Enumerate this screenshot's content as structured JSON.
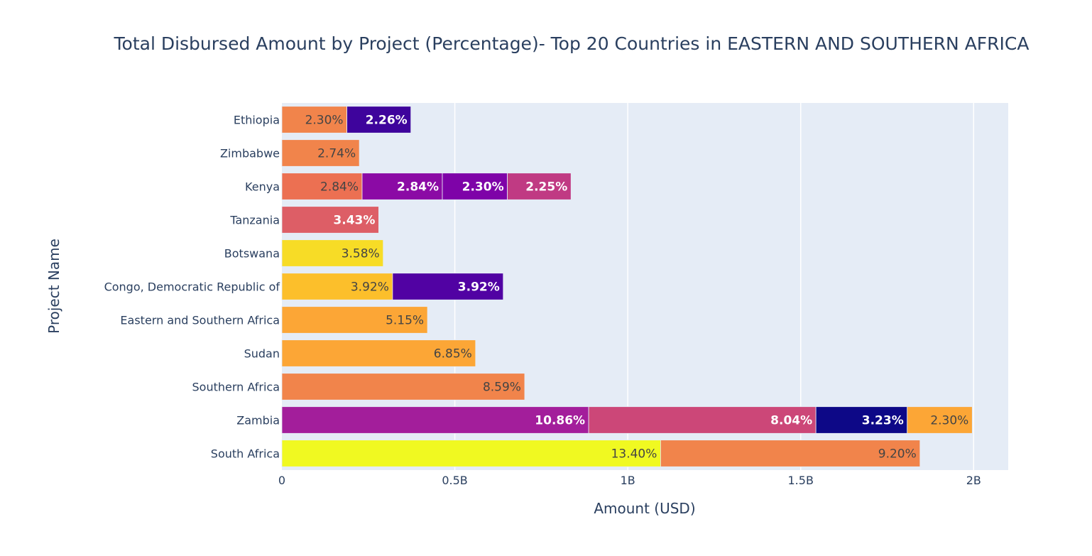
{
  "chart_data": {
    "type": "bar",
    "orientation": "horizontal",
    "barmode": "stack",
    "title": "Total Disbursed Amount by Project (Percentage)- Top 20 Countries in EASTERN AND SOUTHERN AFRICA",
    "xlabel": "Amount (USD)",
    "ylabel": "Project Name",
    "xlim": [
      0,
      2100000000
    ],
    "x_ticks": [
      {
        "value": 0,
        "label": "0"
      },
      {
        "value": 500000000,
        "label": "0.5B"
      },
      {
        "value": 1000000000,
        "label": "1B"
      },
      {
        "value": 1500000000,
        "label": "1.5B"
      },
      {
        "value": 2000000000,
        "label": "2B"
      }
    ],
    "grid": true,
    "categories": [
      "South Africa",
      "Zambia",
      "Southern Africa",
      "Sudan",
      "Eastern and Southern Africa",
      "Congo, Democratic Republic of",
      "Botswana",
      "Tanzania",
      "Kenya",
      "Zimbabwe",
      "Ethiopia"
    ],
    "rows": [
      {
        "category": "South Africa",
        "segments": [
          {
            "value": 1095000000,
            "label": "13.40%",
            "color": "#f0f921"
          },
          {
            "value": 750000000,
            "label": "9.20%",
            "color": "#f1844b"
          }
        ]
      },
      {
        "category": "Zambia",
        "segments": [
          {
            "value": 887000000,
            "label": "10.86%",
            "color": "#a31e9b"
          },
          {
            "value": 657000000,
            "label": "8.04%",
            "color": "#cc4778"
          },
          {
            "value": 264000000,
            "label": "3.23%",
            "color": "#0d0887"
          },
          {
            "value": 188000000,
            "label": "2.30%",
            "color": "#fca636"
          }
        ]
      },
      {
        "category": "Southern Africa",
        "segments": [
          {
            "value": 702000000,
            "label": "8.59%",
            "color": "#f1844b"
          }
        ]
      },
      {
        "category": "Sudan",
        "segments": [
          {
            "value": 560000000,
            "label": "6.85%",
            "color": "#fca636"
          }
        ]
      },
      {
        "category": "Eastern and Southern Africa",
        "segments": [
          {
            "value": 421000000,
            "label": "5.15%",
            "color": "#fca636"
          }
        ]
      },
      {
        "category": "Congo, Democratic Republic of",
        "segments": [
          {
            "value": 320000000,
            "label": "3.92%",
            "color": "#fcbf2b"
          },
          {
            "value": 320000000,
            "label": "3.92%",
            "color": "#5102a3"
          }
        ]
      },
      {
        "category": "Botswana",
        "segments": [
          {
            "value": 293000000,
            "label": "3.58%",
            "color": "#f7dc26"
          }
        ]
      },
      {
        "category": "Tanzania",
        "segments": [
          {
            "value": 280000000,
            "label": "3.43%",
            "color": "#dd5e66"
          }
        ]
      },
      {
        "category": "Kenya",
        "segments": [
          {
            "value": 232000000,
            "label": "2.84%",
            "color": "#ec7052"
          },
          {
            "value": 232000000,
            "label": "2.84%",
            "color": "#8b0aa5"
          },
          {
            "value": 188000000,
            "label": "2.30%",
            "color": "#7e03a8"
          },
          {
            "value": 184000000,
            "label": "2.25%",
            "color": "#c03a83"
          }
        ]
      },
      {
        "category": "Zimbabwe",
        "segments": [
          {
            "value": 224000000,
            "label": "2.74%",
            "color": "#f1844b"
          }
        ]
      },
      {
        "category": "Ethiopia",
        "segments": [
          {
            "value": 188000000,
            "label": "2.30%",
            "color": "#f1844b"
          },
          {
            "value": 185000000,
            "label": "2.26%",
            "color": "#3e049c"
          }
        ]
      }
    ],
    "colors": {
      "plot_background": "#e5ecf6",
      "grid": "#ffffff",
      "text": "#2a3f5f",
      "label_dark": "#444444",
      "label_light": "#ffffff"
    }
  }
}
